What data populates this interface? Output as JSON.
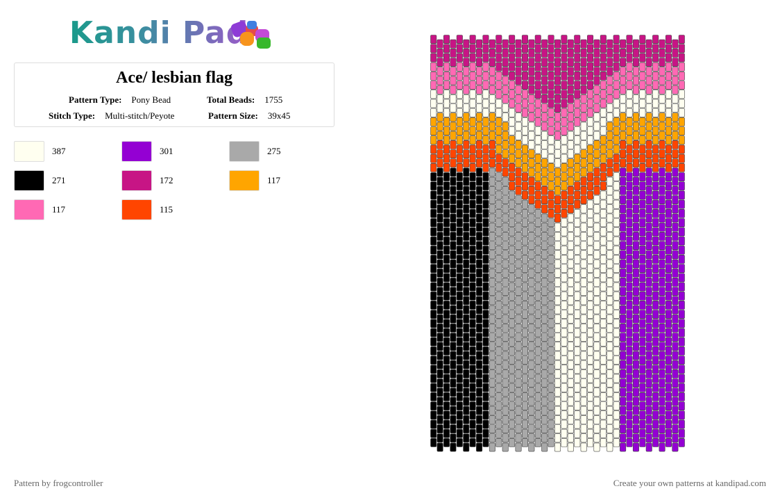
{
  "header": {
    "logo": "Kandi Pad"
  },
  "info": {
    "title": "Ace/ lesbian flag",
    "fields": [
      {
        "label": "Pattern Type:",
        "value": "Pony Bead"
      },
      {
        "label": "Total Beads:",
        "value": "1755"
      },
      {
        "label": "Stitch Type:",
        "value": "Multi-stitch/Peyote"
      },
      {
        "label": "Pattern Size:",
        "value": "39x45"
      }
    ]
  },
  "palette": [
    {
      "color": "#FFFFF0",
      "count": 387
    },
    {
      "color": "#9400D3",
      "count": 301
    },
    {
      "color": "#A9A9A9",
      "count": 275
    },
    {
      "color": "#000000",
      "count": 271
    },
    {
      "color": "#C71585",
      "count": 172
    },
    {
      "color": "#FFA500",
      "count": 117
    },
    {
      "color": "#FF69B4",
      "count": 117
    },
    {
      "color": "#FF4500",
      "count": 115
    }
  ],
  "footer": {
    "left": "Pattern by frogcontroller",
    "right": "Create your own patterns at kandipad.com"
  }
}
